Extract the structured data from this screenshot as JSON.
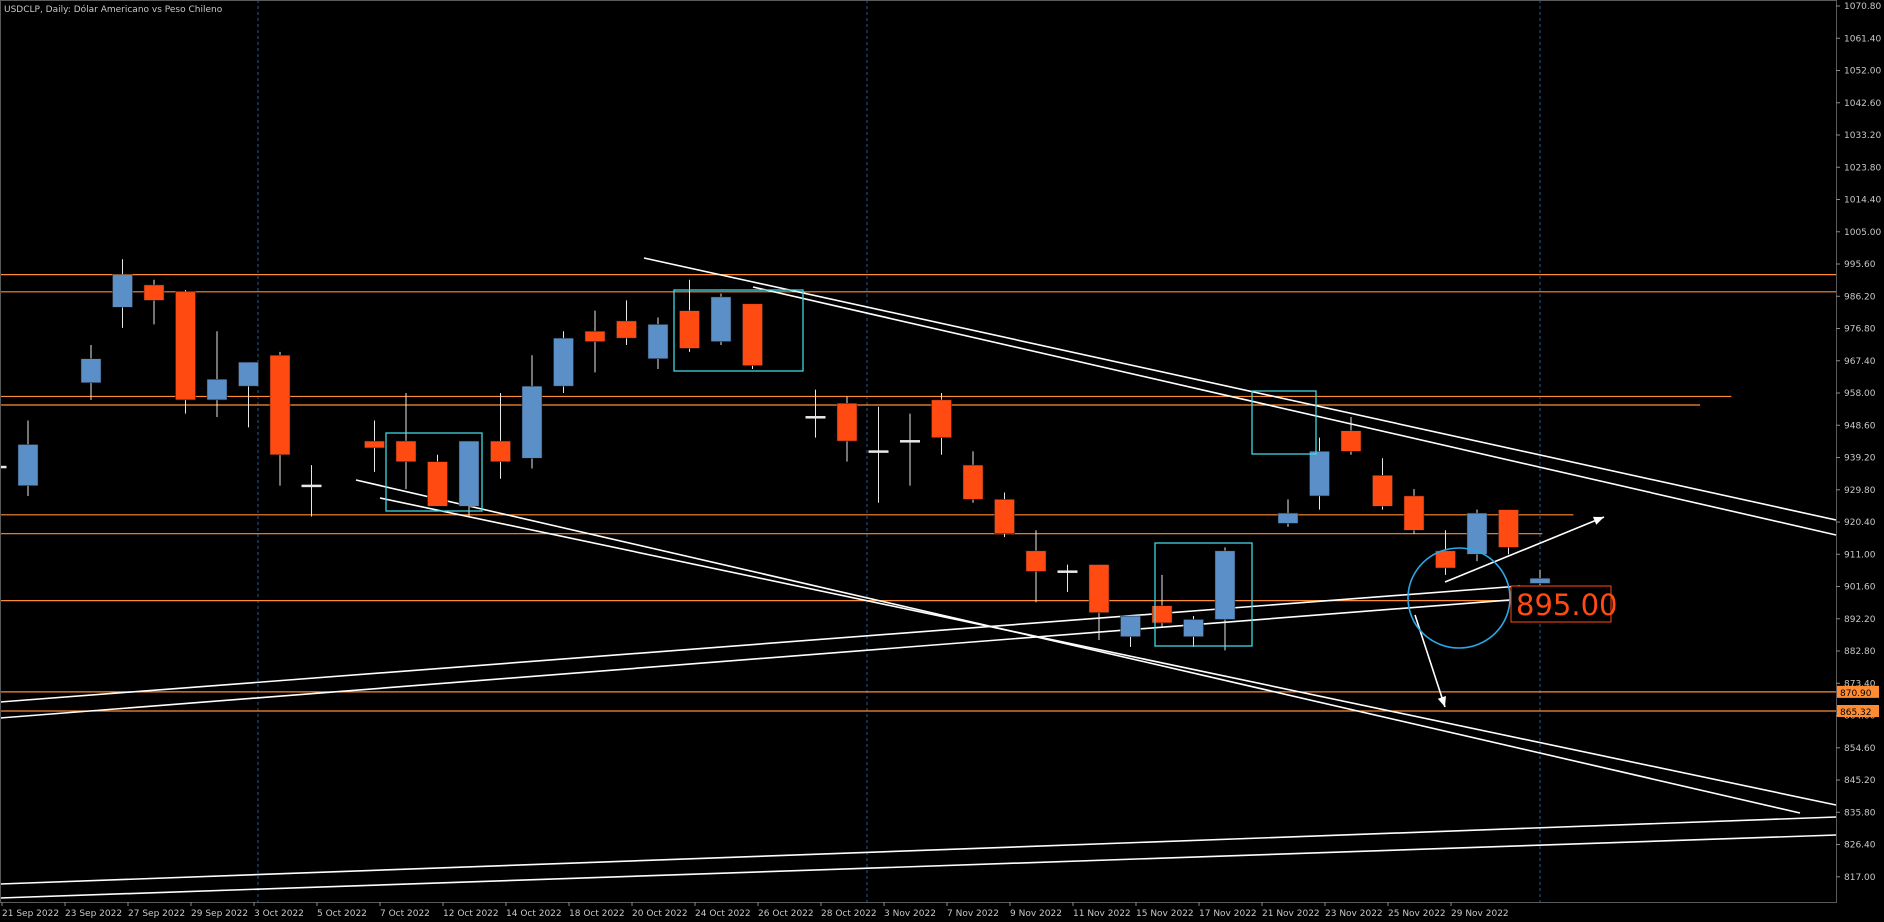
{
  "header": {
    "title": "USDCLP, Daily:  Dólar Americano vs Peso Chileno"
  },
  "colors": {
    "background": "#000000",
    "bull": "#5b8fc7",
    "bear": "#ff4a12",
    "wick": "#e8e8e8",
    "level": "#ff8c32",
    "trend": "#ffffff",
    "box": "#40d8e0",
    "circle": "#2aa8e8",
    "grid": "#2c5a8c",
    "axis_text": "#c8c8c8"
  },
  "chart_data": {
    "type": "candlestick",
    "title": "USDCLP, Daily:  Dólar Americano vs Peso Chileno",
    "ylim": [
      811.4,
      1070.8
    ],
    "y_ticks": [
      "1070.80",
      "1061.40",
      "1052.00",
      "1042.60",
      "1033.20",
      "1023.80",
      "1014.40",
      "1005.00",
      "995.60",
      "986.20",
      "976.80",
      "967.40",
      "958.00",
      "948.60",
      "939.20",
      "929.80",
      "920.40",
      "911.00",
      "901.60",
      "892.20",
      "882.80",
      "873.40",
      "864.00",
      "854.60",
      "845.20",
      "835.80",
      "826.40",
      "817.00"
    ],
    "x_ticks": [
      "21 Sep 2022",
      "23 Sep 2022",
      "27 Sep 2022",
      "29 Sep 2022",
      "3 Oct 2022",
      "5 Oct 2022",
      "7 Oct 2022",
      "12 Oct 2022",
      "14 Oct 2022",
      "18 Oct 2022",
      "20 Oct 2022",
      "24 Oct 2022",
      "26 Oct 2022",
      "28 Oct 2022",
      "3 Nov 2022",
      "7 Nov 2022",
      "9 Nov 2022",
      "11 Nov 2022",
      "15 Nov 2022",
      "17 Nov 2022",
      "21 Nov 2022",
      "23 Nov 2022",
      "25 Nov 2022",
      "29 Nov 2022"
    ],
    "candles": [
      {
        "i": -1,
        "o": 936.5,
        "h": 936.5,
        "l": 936.5,
        "c": 936.5
      },
      {
        "i": 0,
        "o": 931.0,
        "h": 950.0,
        "l": 928.0,
        "c": 943.0
      },
      {
        "i": 2,
        "o": 961.0,
        "h": 972.0,
        "l": 956.0,
        "c": 968.0
      },
      {
        "i": 3,
        "o": 983.0,
        "h": 997.0,
        "l": 977.0,
        "c": 992.5
      },
      {
        "i": 4,
        "o": 989.5,
        "h": 991.0,
        "l": 978.0,
        "c": 985.0
      },
      {
        "i": 5,
        "o": 987.5,
        "h": 988.0,
        "l": 952.0,
        "c": 956.0
      },
      {
        "i": 6,
        "o": 956.0,
        "h": 976.0,
        "l": 951.0,
        "c": 962.0
      },
      {
        "i": 7,
        "o": 960.0,
        "h": 967.0,
        "l": 948.0,
        "c": 967.0
      },
      {
        "i": 8,
        "o": 969.0,
        "h": 970.0,
        "l": 931.0,
        "c": 940.0
      },
      {
        "i": 9,
        "o": 931.0,
        "h": 937.0,
        "l": 922.0,
        "c": 931.0
      },
      {
        "i": 11,
        "o": 944.0,
        "h": 950.0,
        "l": 935.0,
        "c": 942.0
      },
      {
        "i": 12,
        "o": 944.0,
        "h": 958.0,
        "l": 930.0,
        "c": 938.0
      },
      {
        "i": 13,
        "o": 938.0,
        "h": 940.0,
        "l": 925.0,
        "c": 925.0
      },
      {
        "i": 14,
        "o": 925.0,
        "h": 944.0,
        "l": 922.0,
        "c": 944.0
      },
      {
        "i": 15,
        "o": 944.0,
        "h": 958.0,
        "l": 933.0,
        "c": 938.0
      },
      {
        "i": 16,
        "o": 939.0,
        "h": 969.0,
        "l": 936.0,
        "c": 960.0
      },
      {
        "i": 17,
        "o": 960.0,
        "h": 976.0,
        "l": 958.0,
        "c": 974.0
      },
      {
        "i": 18,
        "o": 976.0,
        "h": 982.0,
        "l": 964.0,
        "c": 973.0
      },
      {
        "i": 19,
        "o": 979.0,
        "h": 985.0,
        "l": 972.0,
        "c": 974.0
      },
      {
        "i": 20,
        "o": 968.0,
        "h": 980.0,
        "l": 965.0,
        "c": 978.0
      },
      {
        "i": 21,
        "o": 982.0,
        "h": 991.0,
        "l": 970.0,
        "c": 971.0
      },
      {
        "i": 22,
        "o": 973.0,
        "h": 987.0,
        "l": 972.0,
        "c": 986.0
      },
      {
        "i": 23,
        "o": 984.0,
        "h": 984.0,
        "l": 965.0,
        "c": 966.0
      },
      {
        "i": 25,
        "o": 951.0,
        "h": 959.0,
        "l": 945.0,
        "c": 951.0
      },
      {
        "i": 26,
        "o": 955.0,
        "h": 957.0,
        "l": 938.0,
        "c": 944.0
      },
      {
        "i": 27,
        "o": 941.0,
        "h": 954.0,
        "l": 926.0,
        "c": 941.0
      },
      {
        "i": 28,
        "o": 944.0,
        "h": 952.0,
        "l": 931.0,
        "c": 944.0
      },
      {
        "i": 29,
        "o": 956.0,
        "h": 958.0,
        "l": 940.0,
        "c": 945.0
      },
      {
        "i": 30,
        "o": 937.0,
        "h": 941.0,
        "l": 926.0,
        "c": 927.0
      },
      {
        "i": 31,
        "o": 927.0,
        "h": 929.0,
        "l": 916.0,
        "c": 917.0
      },
      {
        "i": 32,
        "o": 912.0,
        "h": 918.0,
        "l": 897.0,
        "c": 906.0
      },
      {
        "i": 33,
        "o": 906.0,
        "h": 908.0,
        "l": 900.0,
        "c": 906.0
      },
      {
        "i": 34,
        "o": 908.0,
        "h": 908.0,
        "l": 886.0,
        "c": 894.0
      },
      {
        "i": 35,
        "o": 887.0,
        "h": 893.0,
        "l": 884.0,
        "c": 893.0
      },
      {
        "i": 36,
        "o": 896.0,
        "h": 905.0,
        "l": 890.0,
        "c": 891.0
      },
      {
        "i": 37,
        "o": 887.0,
        "h": 893.0,
        "l": 884.0,
        "c": 892.0
      },
      {
        "i": 38,
        "o": 892.0,
        "h": 913.0,
        "l": 883.0,
        "c": 912.0
      },
      {
        "i": 40,
        "o": 920.0,
        "h": 927.0,
        "l": 919.0,
        "c": 923.0
      },
      {
        "i": 41,
        "o": 928.0,
        "h": 945.0,
        "l": 924.0,
        "c": 941.0
      },
      {
        "i": 42,
        "o": 947.0,
        "h": 951.0,
        "l": 940.0,
        "c": 941.0
      },
      {
        "i": 43,
        "o": 934.0,
        "h": 939.0,
        "l": 924.0,
        "c": 925.0
      },
      {
        "i": 44,
        "o": 928.0,
        "h": 930.0,
        "l": 917.0,
        "c": 918.0
      },
      {
        "i": 45,
        "o": 912.0,
        "h": 918.0,
        "l": 905.0,
        "c": 907.0
      },
      {
        "i": 46,
        "o": 911.0,
        "h": 924.0,
        "l": 909.0,
        "c": 923.0
      },
      {
        "i": 47,
        "o": 924.0,
        "h": 924.0,
        "l": 911.0,
        "c": 913.0
      },
      {
        "i": 48,
        "o": 902.5,
        "h": 906.5,
        "l": 902.0,
        "c": 904.0
      }
    ],
    "horizontal_levels": [
      {
        "y": 992.5,
        "x0": 0,
        "x1": 1
      },
      {
        "y": 987.5,
        "x0": 0,
        "x1": 1
      },
      {
        "y": 957.0,
        "x0": 0,
        "x1": 0.943
      },
      {
        "y": 954.5,
        "x0": 0,
        "x1": 0.926
      },
      {
        "y": 922.5,
        "x0": 0,
        "x1": 0.857
      },
      {
        "y": 917.0,
        "x0": 0,
        "x1": 0.84
      },
      {
        "y": 897.5,
        "x0": 0,
        "x1": 0.84
      },
      {
        "y": 870.9,
        "x0": 0,
        "x1": 1,
        "label": "870.90"
      },
      {
        "y": 865.32,
        "x0": 0,
        "x1": 1,
        "label": "865.32"
      }
    ],
    "annotation_label": "895.00"
  }
}
